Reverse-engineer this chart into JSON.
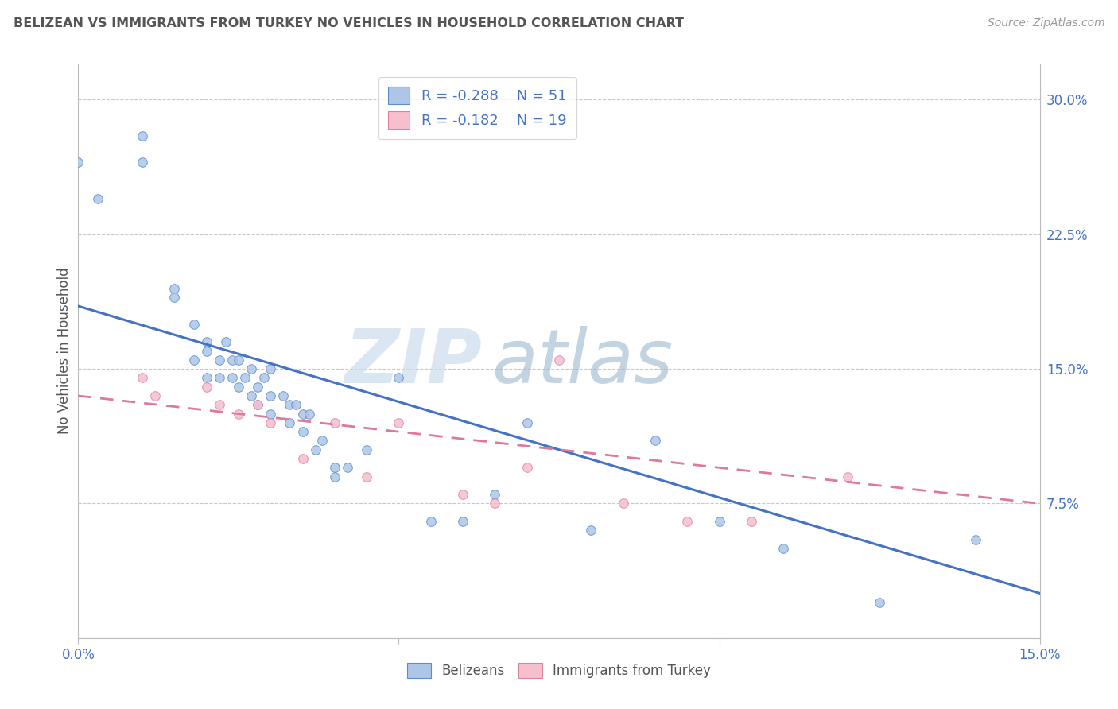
{
  "title": "BELIZEAN VS IMMIGRANTS FROM TURKEY NO VEHICLES IN HOUSEHOLD CORRELATION CHART",
  "source": "Source: ZipAtlas.com",
  "ylabel": "No Vehicles in Household",
  "xlim": [
    0.0,
    0.15
  ],
  "ylim": [
    0.0,
    0.32
  ],
  "xtick_vals": [
    0.0,
    0.05,
    0.1,
    0.15
  ],
  "xtick_labels": [
    "0.0%",
    "",
    "",
    "15.0%"
  ],
  "ytick_vals_right": [
    0.075,
    0.15,
    0.225,
    0.3
  ],
  "ytick_labels_right": [
    "7.5%",
    "15.0%",
    "22.5%",
    "30.0%"
  ],
  "blue_R": -0.288,
  "blue_N": 51,
  "pink_R": -0.182,
  "pink_N": 19,
  "blue_color": "#adc6e8",
  "pink_color": "#f5bfce",
  "blue_edge_color": "#5b8ec7",
  "pink_edge_color": "#e0819e",
  "blue_line_color": "#4472c4",
  "pink_line_color": "#e07898",
  "legend_label_blue": "Belizeans",
  "legend_label_pink": "Immigrants from Turkey",
  "blue_scatter_x": [
    0.0,
    0.003,
    0.01,
    0.01,
    0.015,
    0.015,
    0.018,
    0.018,
    0.02,
    0.02,
    0.02,
    0.022,
    0.022,
    0.023,
    0.024,
    0.024,
    0.025,
    0.025,
    0.026,
    0.027,
    0.027,
    0.028,
    0.028,
    0.029,
    0.03,
    0.03,
    0.03,
    0.032,
    0.033,
    0.033,
    0.034,
    0.035,
    0.035,
    0.036,
    0.037,
    0.038,
    0.04,
    0.04,
    0.042,
    0.045,
    0.05,
    0.055,
    0.06,
    0.065,
    0.07,
    0.08,
    0.09,
    0.1,
    0.11,
    0.125,
    0.14
  ],
  "blue_scatter_y": [
    0.265,
    0.245,
    0.28,
    0.265,
    0.195,
    0.19,
    0.175,
    0.155,
    0.165,
    0.16,
    0.145,
    0.155,
    0.145,
    0.165,
    0.155,
    0.145,
    0.155,
    0.14,
    0.145,
    0.15,
    0.135,
    0.14,
    0.13,
    0.145,
    0.15,
    0.135,
    0.125,
    0.135,
    0.13,
    0.12,
    0.13,
    0.125,
    0.115,
    0.125,
    0.105,
    0.11,
    0.095,
    0.09,
    0.095,
    0.105,
    0.145,
    0.065,
    0.065,
    0.08,
    0.12,
    0.06,
    0.11,
    0.065,
    0.05,
    0.02,
    0.055
  ],
  "pink_scatter_x": [
    0.01,
    0.012,
    0.02,
    0.022,
    0.025,
    0.028,
    0.03,
    0.035,
    0.04,
    0.045,
    0.05,
    0.06,
    0.065,
    0.07,
    0.075,
    0.085,
    0.095,
    0.105,
    0.12
  ],
  "pink_scatter_y": [
    0.145,
    0.135,
    0.14,
    0.13,
    0.125,
    0.13,
    0.12,
    0.1,
    0.12,
    0.09,
    0.12,
    0.08,
    0.075,
    0.095,
    0.155,
    0.075,
    0.065,
    0.065,
    0.09
  ],
  "blue_line_x0": 0.0,
  "blue_line_x1": 0.15,
  "blue_line_y0": 0.185,
  "blue_line_y1": 0.025,
  "pink_line_x0": 0.0,
  "pink_line_x1": 0.15,
  "pink_line_y0": 0.135,
  "pink_line_y1": 0.075,
  "bg_color": "#ffffff",
  "grid_color": "#c8c8c8",
  "title_color": "#555555",
  "source_color": "#999999",
  "axis_label_color": "#555555",
  "tick_color": "#4472c4",
  "scatter_size": 70
}
